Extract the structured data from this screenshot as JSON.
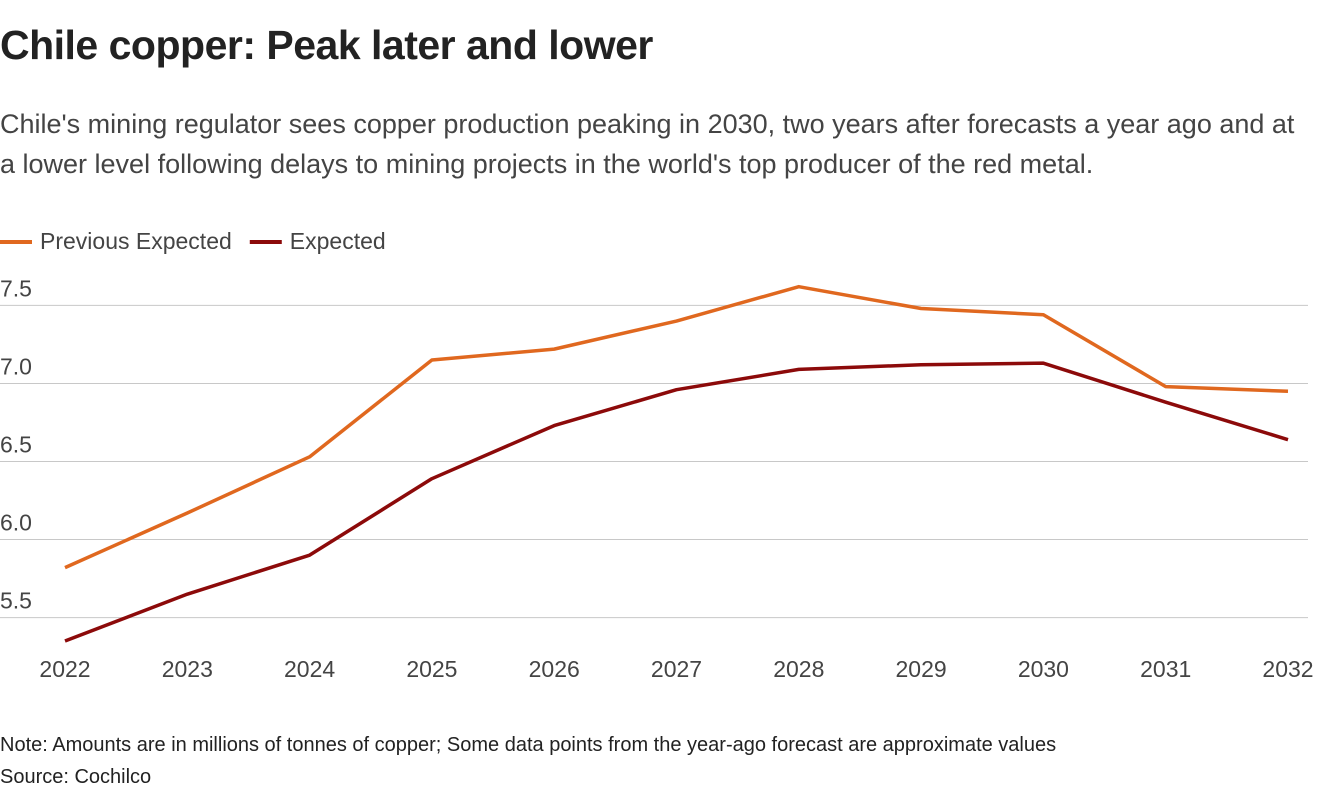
{
  "chart_data": {
    "type": "line",
    "title": "Chile copper: Peak later and lower",
    "subtitle": "Chile's mining regulator sees copper production peaking in 2030, two years after forecasts a year ago and at a lower level following delays to mining projects in the world's top producer of the red metal.",
    "x": [
      2022,
      2023,
      2024,
      2025,
      2026,
      2027,
      2028,
      2029,
      2030,
      2031,
      2032
    ],
    "series": [
      {
        "name": "Previous Expected",
        "color": "#e0681f",
        "values": [
          5.82,
          6.17,
          6.53,
          7.15,
          7.22,
          7.4,
          7.62,
          7.48,
          7.44,
          6.98,
          6.95
        ]
      },
      {
        "name": "Expected",
        "color": "#8c0a0a",
        "values": [
          5.35,
          5.65,
          5.9,
          6.39,
          6.73,
          6.96,
          7.09,
          7.12,
          7.13,
          6.88,
          6.64
        ]
      }
    ],
    "xlim": [
      2022,
      2032
    ],
    "xticks": [
      2022,
      2023,
      2024,
      2025,
      2026,
      2027,
      2028,
      2029,
      2030,
      2031,
      2032
    ],
    "ylim": [
      5.35,
      7.65
    ],
    "yticks": [
      7.5,
      {
        "value": 7,
        "label": "7.0"
      },
      6.5,
      {
        "value": 6,
        "label": "6.0"
      },
      5.5
    ],
    "grid": true,
    "legend": "top-left",
    "note": "Note: Amounts are in millions of tonnes of copper; Some data points from the year-ago forecast are approximate values",
    "source": "Source: Cochilco"
  }
}
